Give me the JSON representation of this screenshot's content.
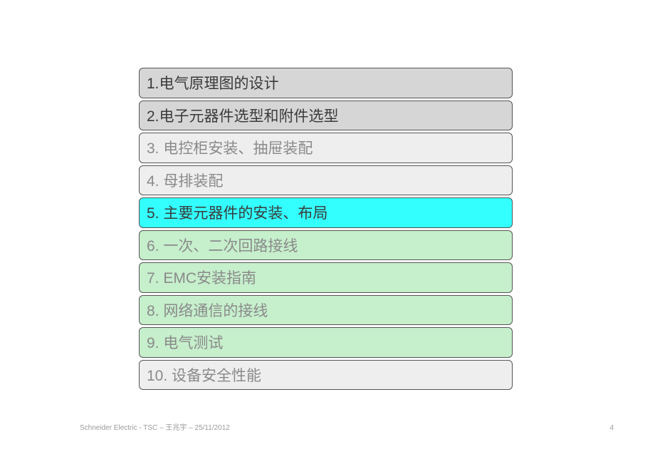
{
  "list": {
    "items": [
      {
        "label": "1.电气原理图的设计",
        "bg": "#d6d6d6",
        "fg": "#3a3a3a"
      },
      {
        "label": "2.电子元器件选型和附件选型",
        "bg": "#d6d6d6",
        "fg": "#3a3a3a"
      },
      {
        "label": "3. 电控柜安装、抽屉装配",
        "bg": "#eeeeee",
        "fg": "#8a8a8a"
      },
      {
        "label": "4. 母排装配",
        "bg": "#eeeeee",
        "fg": "#8a8a8a"
      },
      {
        "label": "5. 主要元器件的安装、布局",
        "bg": "#33ffff",
        "fg": "#3a3a3a"
      },
      {
        "label": "6. 一次、二次回路接线",
        "bg": "#c6efcc",
        "fg": "#8a8a8a"
      },
      {
        "label": "7. EMC安装指南",
        "bg": "#c6efcc",
        "fg": "#8a8a8a"
      },
      {
        "label": "8. 网络通信的接线",
        "bg": "#c6efcc",
        "fg": "#8a8a8a"
      },
      {
        "label": "9. 电气测试",
        "bg": "#c6efcc",
        "fg": "#8a8a8a"
      },
      {
        "label": "10. 设备安全性能",
        "bg": "#eeeeee",
        "fg": "#8a8a8a"
      }
    ]
  },
  "footer": {
    "text": "Schneider Electric - TSC – 王兆宇 – 25/11/2012"
  },
  "page_number": "4"
}
